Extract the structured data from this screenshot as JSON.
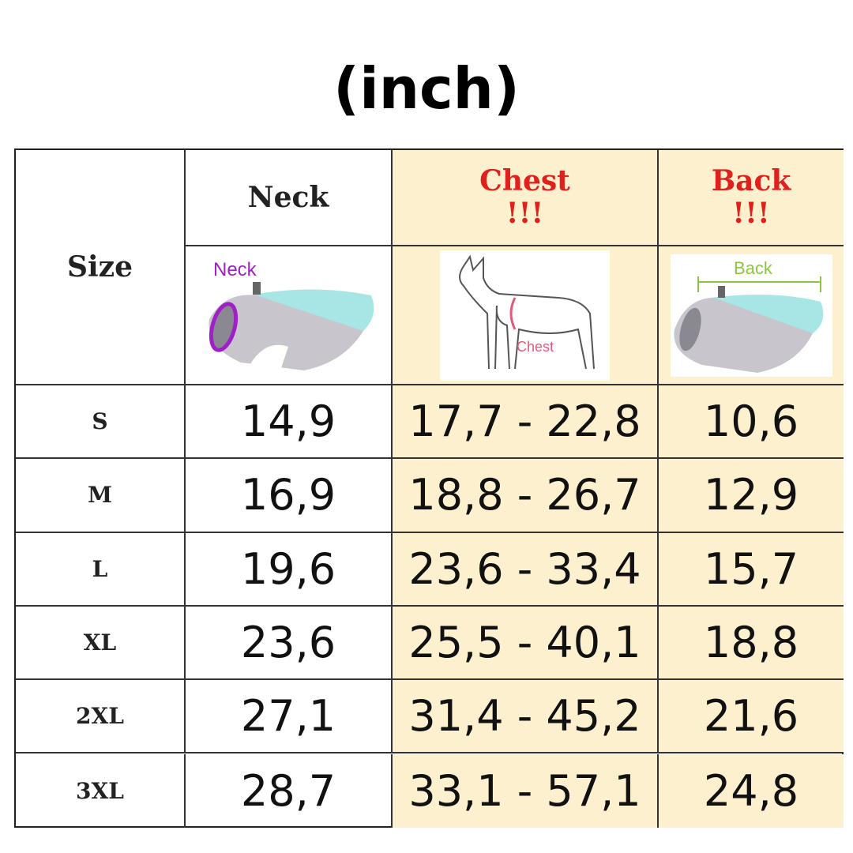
{
  "title": "(inch)",
  "headers": {
    "size": "Size",
    "neck": "Neck",
    "chest": "Chest",
    "chest_mark": "!!!",
    "back": "Back",
    "back_mark": "!!!"
  },
  "images": {
    "neck_label": "Neck",
    "chest_label": "Chest",
    "back_label": "Back"
  },
  "colors": {
    "highlight": "#fdf0cf",
    "header_red": "#e0201c",
    "neck_purple": "#a020c8",
    "chest_pink": "#e05a7a",
    "back_green": "#8cc63f",
    "vest_teal": "#a8e6e6"
  },
  "rows": [
    {
      "size": "S",
      "neck": "14,9",
      "chest": "17,7 - 22,8",
      "back": "10,6"
    },
    {
      "size": "M",
      "neck": "16,9",
      "chest": "18,8 - 26,7",
      "back": "12,9"
    },
    {
      "size": "L",
      "neck": "19,6",
      "chest": "23,6 - 33,4",
      "back": "15,7"
    },
    {
      "size": "XL",
      "neck": "23,6",
      "chest": "25,5 - 40,1",
      "back": "18,8"
    },
    {
      "size": "2XL",
      "neck": "27,1",
      "chest": "31,4 - 45,2",
      "back": "21,6"
    },
    {
      "size": "3XL",
      "neck": "28,7",
      "chest": "33,1 - 57,1",
      "back": "24,8"
    }
  ]
}
